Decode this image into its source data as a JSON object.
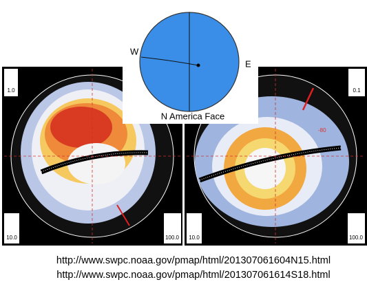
{
  "globe": {
    "west_label": "W",
    "east_label": "E",
    "caption": "N America Face"
  },
  "north_panel": {
    "top_left_scale": "1.0",
    "bottom_left_scale": "10.0",
    "bottom_right_scale": "100.0"
  },
  "south_panel": {
    "top_right_scale": "0.1",
    "latitude_label": "-80",
    "bottom_left_scale": "10.0",
    "bottom_right_scale": "100.0"
  },
  "links": [
    "http://www.swpc.noaa.gov/pmap/html/201307061604N15.html",
    "http://www.swpc.noaa.gov/pmap/html/201307061614S18.html"
  ]
}
